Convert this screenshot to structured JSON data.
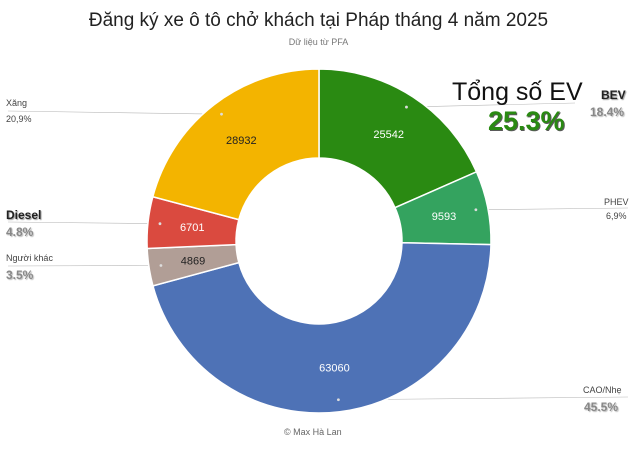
{
  "title": "Đăng ký xe ô tô chở khách tại Pháp tháng 4 năm 2025",
  "subtitle": "Dữ liệu từ PFA",
  "ev_total": {
    "label": "Tổng số EV",
    "value": "25.3%"
  },
  "credit": "Max Hà Lan",
  "credit_icon": "copyright-icon",
  "colors": {
    "bev": "#2a8a12",
    "phev": "#34a35f",
    "hev": "#4e72b6",
    "other": "#b19e96",
    "diesel": "#da4a3f",
    "petrol": "#f3b400"
  },
  "chart_data": {
    "type": "pie",
    "donut": true,
    "title": "Đăng ký xe ô tô chở khách tại Pháp tháng 4 năm 2025",
    "subtitle": "Dữ liệu từ PFA",
    "slices": [
      {
        "key": "bev",
        "label": "BEV",
        "value": 25542,
        "percent": "18.4%",
        "color": "#2a8a12"
      },
      {
        "key": "phev",
        "label": "PHEV",
        "value": 9593,
        "percent": "6,9%",
        "color": "#34a35f"
      },
      {
        "key": "hev",
        "label": "CAO/Nhẹ",
        "value": 63060,
        "percent": "45.5%",
        "color": "#4e72b6"
      },
      {
        "key": "other",
        "label": "Người khác",
        "value": 4869,
        "percent": "3.5%",
        "color": "#b19e96"
      },
      {
        "key": "diesel",
        "label": "Diesel",
        "value": 6701,
        "percent": "4.8%",
        "color": "#da4a3f"
      },
      {
        "key": "petrol",
        "label": "Xăng",
        "value": 28932,
        "percent": "20,9%",
        "color": "#f3b400"
      }
    ]
  }
}
